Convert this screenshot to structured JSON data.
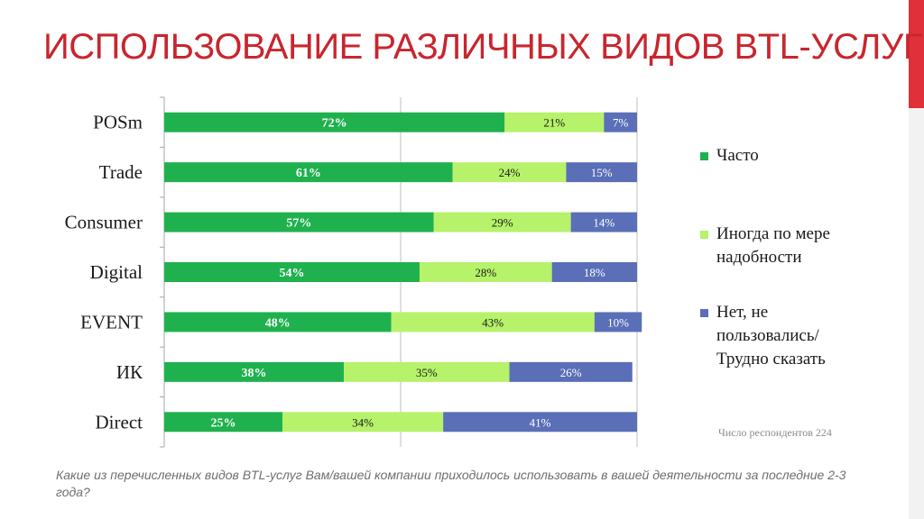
{
  "title": "ИСПОЛЬЗОВАНИЕ РАЗЛИЧНЫХ ВИДОВ BTL-УСЛУГ",
  "note": "Число респондентов 224",
  "question": "Какие из перечисленных видов BTL-услуг Вам/вашей компании приходилось использовать в вашей деятельности за последние 2-3 года?",
  "colors": {
    "accent": "#e0303a",
    "title": "#c8262e",
    "often": "#1fb14e",
    "sometimes": "#b6f26a",
    "never": "#5a6fb8"
  },
  "chart_data": {
    "type": "bar",
    "orientation": "horizontal",
    "stacked": true,
    "categories": [
      "POSm",
      "Trade",
      "Consumer",
      "Digital",
      "EVENT",
      "ИК",
      "Direct"
    ],
    "series": [
      {
        "name": "Часто",
        "color": "#1fb14e",
        "values": [
          72,
          61,
          57,
          54,
          48,
          38,
          25
        ],
        "labels": [
          "72%",
          "61%",
          "57%",
          "54%",
          "48%",
          "38%",
          "25%"
        ]
      },
      {
        "name": "Иногда по мере надобности",
        "color": "#b6f26a",
        "values": [
          21,
          24,
          29,
          28,
          43,
          35,
          34
        ],
        "labels": [
          "21%",
          "24%",
          "29%",
          "28%",
          "43%",
          "35%",
          "34%"
        ]
      },
      {
        "name": "Нет, не пользовались/ Трудно сказать",
        "color": "#5a6fb8",
        "values": [
          7,
          15,
          14,
          18,
          10,
          26,
          41
        ],
        "labels": [
          "7%",
          "15%",
          "14%",
          "18%",
          "10%",
          "26%",
          "41%"
        ]
      }
    ],
    "xlim": [
      0,
      100
    ],
    "grid": true,
    "legend_position": "right"
  }
}
